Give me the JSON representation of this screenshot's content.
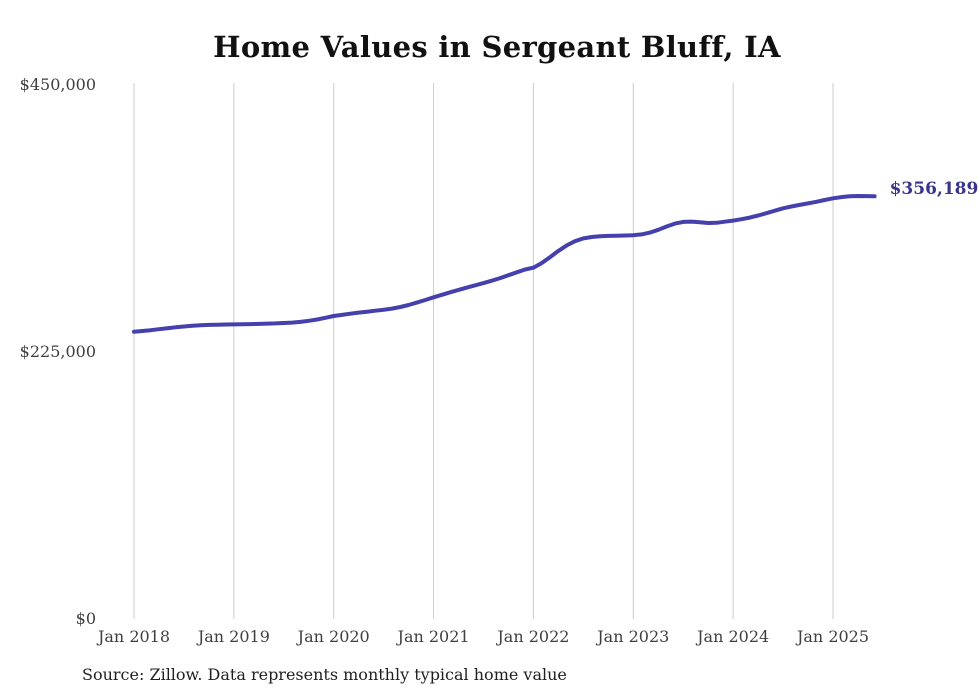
{
  "title": "Home Values in Sergeant Bluff, IA",
  "source_note": "Source: Zillow. Data represents monthly typical home value",
  "colors": {
    "background": "#ffffff",
    "title": "#111111",
    "axis_text": "#3f3f3f",
    "grid": "#cccccc",
    "line": "#4440ac",
    "end_label": "#3a358c",
    "source_text": "#1f1f1f"
  },
  "chart_data": {
    "type": "line",
    "title": "Home Values in Sergeant Bluff, IA",
    "xlabel": "",
    "ylabel": "",
    "ylim": [
      0,
      450000
    ],
    "grid": "vertical-only",
    "legend_position": "none",
    "x_interval": "monthly",
    "x_start": "Jan 2018",
    "x_end": "Jun 2025",
    "y_ticks": [
      {
        "value": 450000,
        "label": "$450,000"
      },
      {
        "value": 225000,
        "label": "$225,000"
      },
      {
        "value": 0,
        "label": "$0"
      }
    ],
    "x_ticks": [
      {
        "month_index": 0,
        "label": "Jan 2018"
      },
      {
        "month_index": 12,
        "label": "Jan 2019"
      },
      {
        "month_index": 24,
        "label": "Jan 2020"
      },
      {
        "month_index": 36,
        "label": "Jan 2021"
      },
      {
        "month_index": 48,
        "label": "Jan 2022"
      },
      {
        "month_index": 60,
        "label": "Jan 2023"
      },
      {
        "month_index": 72,
        "label": "Jan 2024"
      },
      {
        "month_index": 84,
        "label": "Jan 2025"
      }
    ],
    "last_value": 356189,
    "last_value_label": "$356,189",
    "series": [
      {
        "name": "Monthly typical home value",
        "color": "#4440ac",
        "values": [
          242000,
          242700,
          243400,
          244200,
          245000,
          245800,
          246500,
          247100,
          247500,
          247800,
          248000,
          248200,
          248300,
          248400,
          248500,
          248700,
          248900,
          249100,
          249400,
          249800,
          250400,
          251300,
          252400,
          253800,
          255300,
          256300,
          257300,
          258200,
          259000,
          259800,
          260600,
          261600,
          262900,
          264600,
          266600,
          268800,
          271100,
          273200,
          275300,
          277300,
          279300,
          281200,
          283100,
          285100,
          287300,
          289700,
          292200,
          294500,
          296000,
          300000,
          305000,
          310200,
          314800,
          318400,
          320700,
          321900,
          322500,
          322800,
          323000,
          323200,
          323400,
          324100,
          325600,
          328000,
          330800,
          333200,
          334600,
          334900,
          334400,
          333700,
          333900,
          334800,
          335700,
          336900,
          338300,
          340000,
          342000,
          344100,
          346100,
          347600,
          349000,
          350200,
          351600,
          353100,
          354500,
          355500,
          356200,
          356500,
          356400,
          356189
        ]
      }
    ]
  }
}
